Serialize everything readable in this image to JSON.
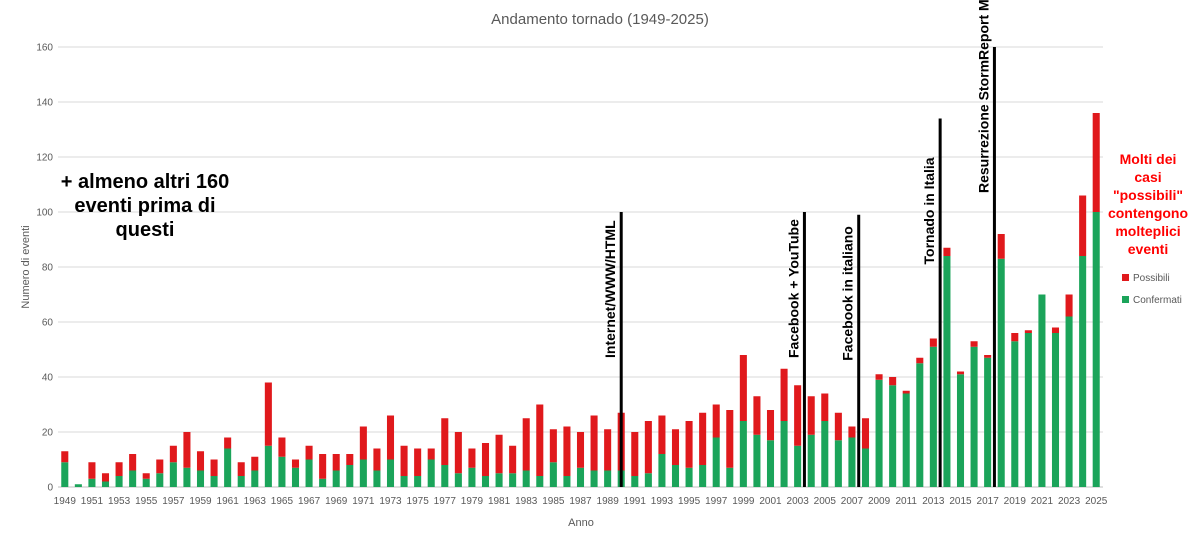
{
  "chart_data": {
    "type": "bar",
    "stacked": true,
    "title": "Andamento tornado (1949-2025)",
    "xlabel": "Anno",
    "ylabel": "Numero di eventi",
    "ylim": [
      0,
      160
    ],
    "yticks": [
      0,
      20,
      40,
      60,
      80,
      100,
      120,
      140,
      160
    ],
    "grid": true,
    "legend_position": "right",
    "categories": [
      1949,
      1950,
      1951,
      1952,
      1953,
      1954,
      1955,
      1956,
      1957,
      1958,
      1959,
      1960,
      1961,
      1962,
      1963,
      1964,
      1965,
      1966,
      1967,
      1968,
      1969,
      1970,
      1971,
      1972,
      1973,
      1974,
      1975,
      1976,
      1977,
      1978,
      1979,
      1980,
      1981,
      1982,
      1983,
      1984,
      1985,
      1986,
      1987,
      1988,
      1989,
      1990,
      1991,
      1992,
      1993,
      1994,
      1995,
      1996,
      1997,
      1998,
      1999,
      2000,
      2001,
      2002,
      2003,
      2004,
      2005,
      2006,
      2007,
      2008,
      2009,
      2010,
      2011,
      2012,
      2013,
      2014,
      2015,
      2016,
      2017,
      2018,
      2019,
      2020,
      2021,
      2022,
      2023,
      2024,
      2025
    ],
    "xtick_labels": [
      "1949",
      "1951",
      "1953",
      "1955",
      "1957",
      "1959",
      "1961",
      "1963",
      "1965",
      "1967",
      "1969",
      "1971",
      "1973",
      "1975",
      "1977",
      "1979",
      "1981",
      "1983",
      "1985",
      "1987",
      "1989",
      "1991",
      "1993",
      "1995",
      "1997",
      "1999",
      "2001",
      "2003",
      "2005",
      "2007",
      "2009",
      "2011",
      "2013",
      "2015",
      "2017",
      "2019",
      "2021",
      "2023",
      "2025"
    ],
    "series": [
      {
        "name": "Confermati",
        "color": "#1ba45a",
        "values": [
          9,
          1,
          3,
          2,
          4,
          6,
          3,
          5,
          9,
          7,
          6,
          4,
          14,
          4,
          6,
          15,
          11,
          7,
          10,
          3,
          6,
          8,
          10,
          6,
          10,
          4,
          4,
          10,
          8,
          5,
          7,
          4,
          5,
          5,
          6,
          4,
          9,
          4,
          7,
          6,
          6,
          6,
          4,
          5,
          12,
          8,
          7,
          8,
          18,
          7,
          24,
          19,
          17,
          24,
          15,
          19,
          24,
          17,
          18,
          14,
          39,
          37,
          34,
          45,
          51,
          84,
          41,
          51,
          47,
          83,
          53,
          56,
          70,
          56,
          62,
          84,
          100
        ]
      },
      {
        "name": "Possibili",
        "color": "#e0191c",
        "values": [
          4,
          0,
          6,
          3,
          5,
          6,
          2,
          5,
          6,
          13,
          7,
          6,
          4,
          5,
          5,
          23,
          7,
          3,
          5,
          9,
          6,
          4,
          12,
          8,
          16,
          11,
          10,
          4,
          17,
          15,
          7,
          12,
          14,
          10,
          19,
          26,
          12,
          18,
          13,
          20,
          15,
          21,
          16,
          19,
          14,
          13,
          17,
          19,
          12,
          21,
          24,
          14,
          11,
          19,
          22,
          14,
          10,
          10,
          4,
          11,
          2,
          3,
          1,
          2,
          3,
          3,
          1,
          2,
          1,
          9,
          3,
          1,
          0,
          2,
          8,
          22,
          36
        ]
      }
    ],
    "annotations": [
      {
        "text": "Internet/WWW/HTML",
        "year": 1990,
        "y_top": 100
      },
      {
        "text": "Facebook + YouTube",
        "year": 2003.5,
        "y_top": 100
      },
      {
        "text": "Facebook in italiano",
        "year": 2007.5,
        "y_top": 99
      },
      {
        "text": "Tornado in Italia",
        "year": 2013.5,
        "y_top": 134
      },
      {
        "text": "Resurrezione StormReport MNW",
        "year": 2017.5,
        "y_top": 160
      }
    ],
    "notes": {
      "left_black": [
        "+ almeno altri 160",
        "eventi prima di",
        "questi"
      ],
      "right_red": [
        "Molti dei",
        "casi",
        "\"possibili\"",
        "contengono",
        "molteplici",
        "eventi"
      ]
    }
  }
}
